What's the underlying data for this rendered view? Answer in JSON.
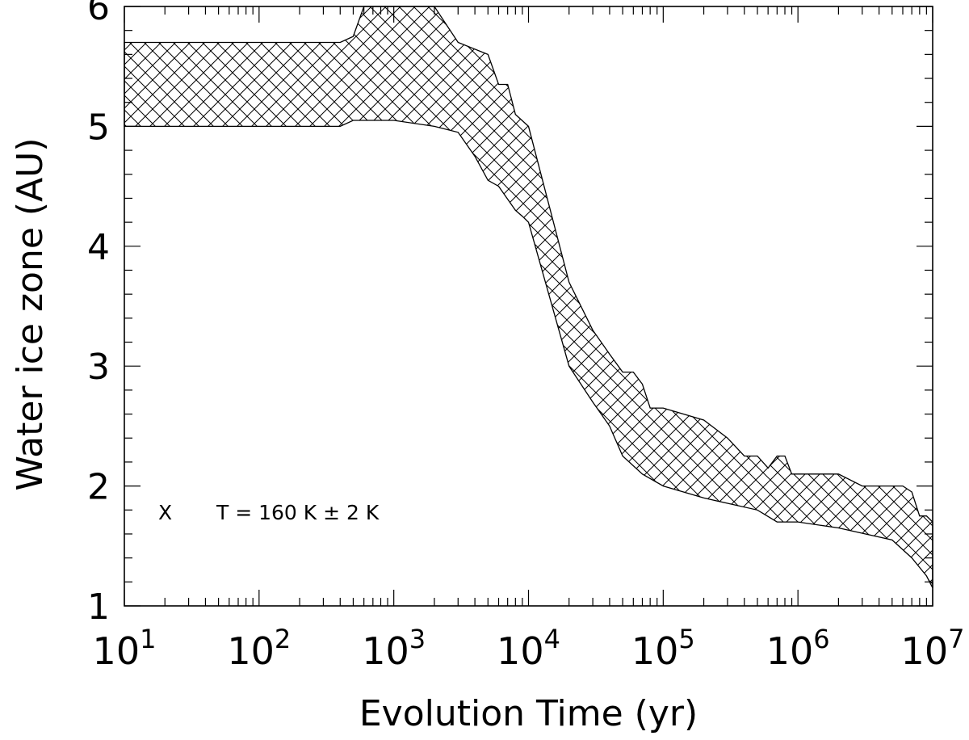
{
  "chart_data": {
    "type": "area",
    "xscale": "log",
    "xlim": [
      10,
      10000000
    ],
    "ylim": [
      1,
      6
    ],
    "grid": false,
    "xlabel": "Evolution Time (yr)",
    "ylabel": "Water ice zone (AU)",
    "xticks": [
      {
        "value": 10,
        "base": "10",
        "exp": "1"
      },
      {
        "value": 100,
        "base": "10",
        "exp": "2"
      },
      {
        "value": 1000,
        "base": "10",
        "exp": "3"
      },
      {
        "value": 10000,
        "base": "10",
        "exp": "4"
      },
      {
        "value": 100000,
        "base": "10",
        "exp": "5"
      },
      {
        "value": 1000000,
        "base": "10",
        "exp": "6"
      },
      {
        "value": 10000000,
        "base": "10",
        "exp": "7"
      }
    ],
    "yticks": [
      1,
      2,
      3,
      4,
      5,
      6
    ],
    "legend": {
      "marker": "X",
      "label": "T = 160 K ± 2 K",
      "position": "bottom-left"
    },
    "fill_pattern": "crosshatch",
    "upper": [
      [
        10,
        5.7
      ],
      [
        400,
        5.7
      ],
      [
        500,
        5.75
      ],
      [
        600,
        6.0
      ],
      [
        2000,
        6.0
      ],
      [
        3000,
        5.7
      ],
      [
        5000,
        5.6
      ],
      [
        6000,
        5.35
      ],
      [
        7000,
        5.35
      ],
      [
        8000,
        5.1
      ],
      [
        10000,
        5.0
      ],
      [
        20000,
        3.7
      ],
      [
        30000,
        3.3
      ],
      [
        40000,
        3.1
      ],
      [
        50000,
        2.95
      ],
      [
        60000,
        2.95
      ],
      [
        70000,
        2.85
      ],
      [
        80000,
        2.65
      ],
      [
        100000,
        2.65
      ],
      [
        200000,
        2.55
      ],
      [
        300000,
        2.4
      ],
      [
        400000,
        2.25
      ],
      [
        500000,
        2.25
      ],
      [
        600000,
        2.15
      ],
      [
        700000,
        2.25
      ],
      [
        800000,
        2.25
      ],
      [
        900000,
        2.1
      ],
      [
        1000000,
        2.1
      ],
      [
        2000000,
        2.1
      ],
      [
        3000000,
        2.0
      ],
      [
        6000000,
        2.0
      ],
      [
        7000000,
        1.95
      ],
      [
        8000000,
        1.75
      ],
      [
        9000000,
        1.75
      ],
      [
        10000000,
        1.7
      ]
    ],
    "lower": [
      [
        10,
        5.0
      ],
      [
        400,
        5.0
      ],
      [
        500,
        5.05
      ],
      [
        1000,
        5.05
      ],
      [
        2000,
        5.0
      ],
      [
        3000,
        4.95
      ],
      [
        4000,
        4.75
      ],
      [
        5000,
        4.55
      ],
      [
        6000,
        4.5
      ],
      [
        8000,
        4.3
      ],
      [
        9000,
        4.25
      ],
      [
        10000,
        4.2
      ],
      [
        20000,
        3.0
      ],
      [
        30000,
        2.7
      ],
      [
        40000,
        2.5
      ],
      [
        50000,
        2.25
      ],
      [
        70000,
        2.1
      ],
      [
        100000,
        2.0
      ],
      [
        200000,
        1.9
      ],
      [
        500000,
        1.8
      ],
      [
        700000,
        1.7
      ],
      [
        1000000,
        1.7
      ],
      [
        2000000,
        1.65
      ],
      [
        5000000,
        1.55
      ],
      [
        7000000,
        1.4
      ],
      [
        9000000,
        1.25
      ],
      [
        10000000,
        1.15
      ]
    ]
  }
}
